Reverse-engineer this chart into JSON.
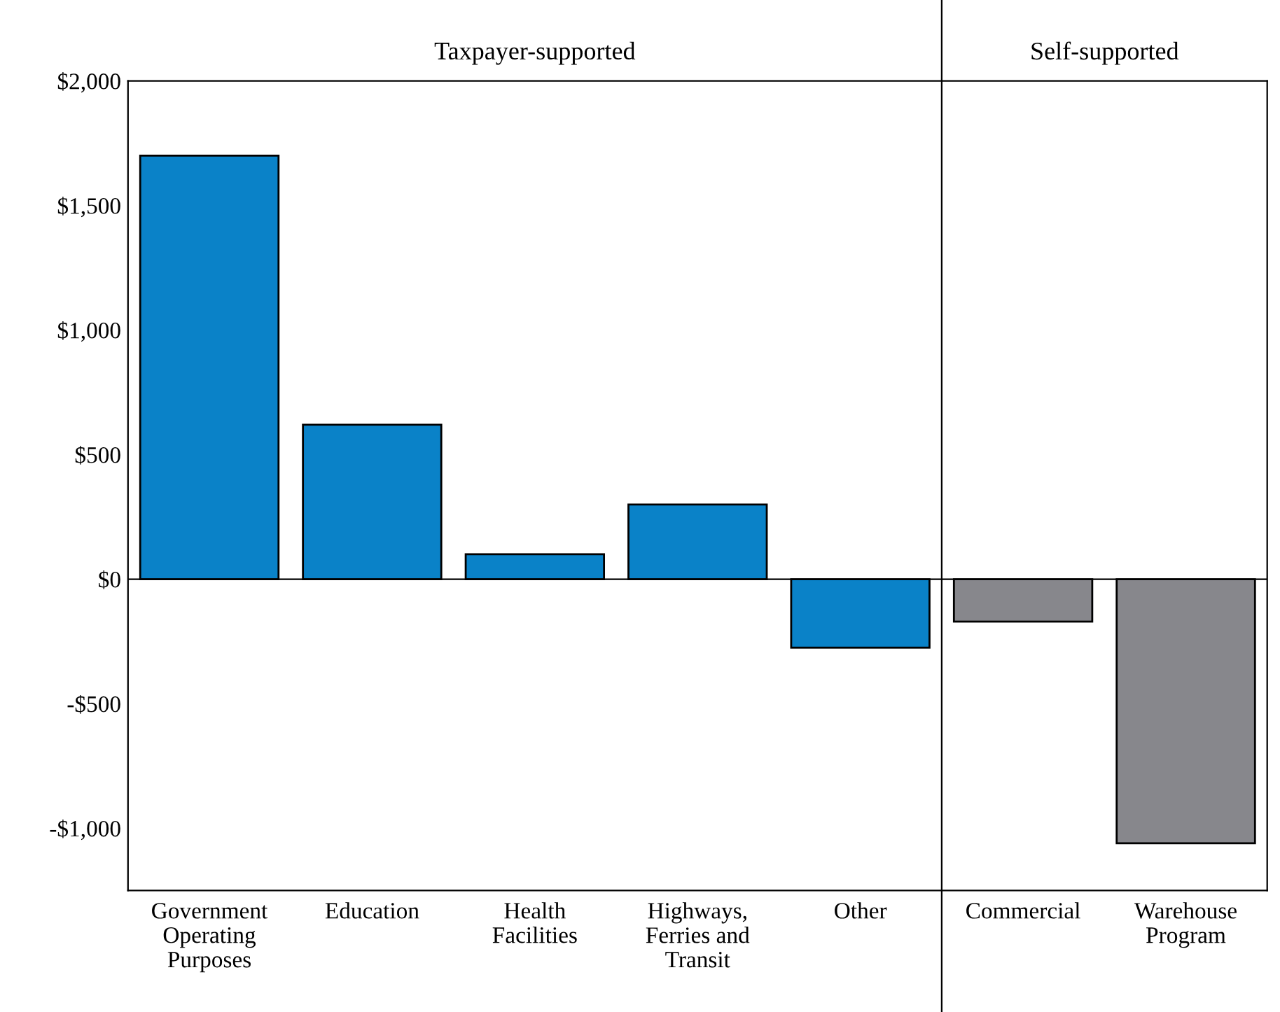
{
  "chart_data": {
    "type": "bar",
    "categories": [
      "Government\nOperating\nPurposes",
      "Education",
      "Health\nFacilities",
      "Highways,\nFerries and\nTransit",
      "Other",
      "Commercial",
      "Warehouse\nProgram"
    ],
    "values": [
      1700,
      620,
      100,
      300,
      -275,
      -170,
      -1060
    ],
    "colors": [
      "#0a82c8",
      "#0a82c8",
      "#0a82c8",
      "#0a82c8",
      "#0a82c8",
      "#87878c",
      "#87878c"
    ],
    "ylim": [
      -1250,
      2000
    ],
    "yticks": [
      {
        "value": -1000,
        "label": "-$1,000"
      },
      {
        "value": -500,
        "label": "-$500"
      },
      {
        "value": 0,
        "label": "$0"
      },
      {
        "value": 500,
        "label": "$500"
      },
      {
        "value": 1000,
        "label": "$1,000"
      },
      {
        "value": 1500,
        "label": "$1,500"
      },
      {
        "value": 2000,
        "label": "$2,000"
      }
    ],
    "annotations": [
      "Taxpayer-supported",
      "Self-supported"
    ],
    "ref_lines": [
      {
        "axis": "y",
        "value": 0
      }
    ]
  }
}
